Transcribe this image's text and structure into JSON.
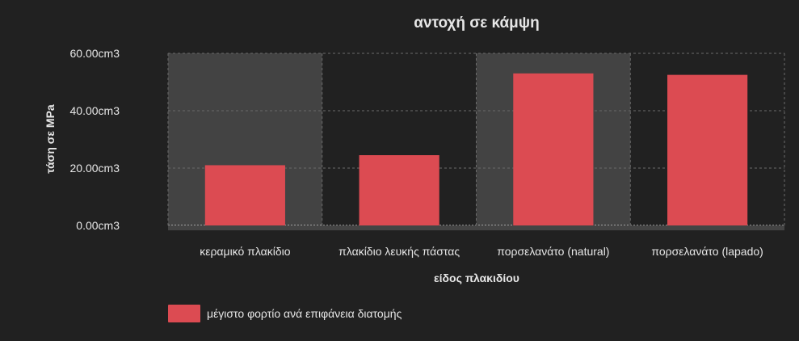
{
  "chart_data": {
    "type": "bar",
    "title": "αντοχή σε κάμψη",
    "xlabel": "είδος πλακιδίου",
    "ylabel": "τάση σε MPa",
    "categories": [
      "κεραμικό πλακίδιο",
      "πλακίδιο λευκής πάστας",
      "πορσελανάτο (natural)",
      "πορσελανάτο (lapado)"
    ],
    "series": [
      {
        "name": "μέγιστο φορτίο ανά επιφάνεια διατομής",
        "values": [
          21,
          24.5,
          53,
          52.5
        ]
      }
    ],
    "ylim": [
      0,
      60
    ],
    "yticks": [
      "0.00cm3",
      "20.00cm3",
      "40.00cm3",
      "60.00cm3"
    ],
    "ytick_values": [
      0,
      20,
      40,
      60
    ],
    "grid": true,
    "legend_position": "bottom-left",
    "colors": {
      "background": "#212121",
      "bar": "#dc4b52",
      "band": "#434343",
      "grid": "#6a6a6a",
      "text": "#e6e6e6"
    }
  }
}
